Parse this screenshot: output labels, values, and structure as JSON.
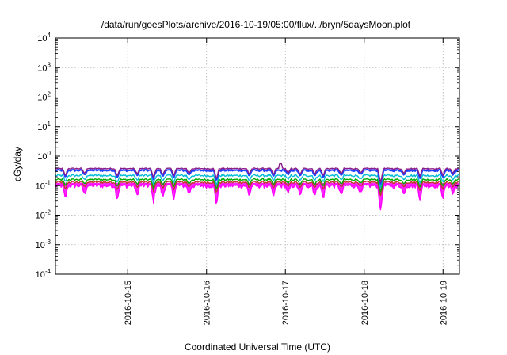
{
  "chart_data": {
    "type": "line",
    "title": "/data/run/goesPlots/archive/2016-10-19/05:00/flux/../bryn/5daysMoon.plot",
    "xlabel": "Coordinated Universal Time (UTC)",
    "ylabel": "cGy/day",
    "yscale": "log",
    "ylim": [
      0.0001,
      10000
    ],
    "xlim": [
      "2016-10-14 02:00",
      "2016-10-19 05:00"
    ],
    "grid": true,
    "legend": "none",
    "yticks": [
      {
        "value": 0.0001,
        "base": "10",
        "exp": "-4"
      },
      {
        "value": 0.001,
        "base": "10",
        "exp": "-3"
      },
      {
        "value": 0.01,
        "base": "10",
        "exp": "-2"
      },
      {
        "value": 0.1,
        "base": "10",
        "exp": "-1"
      },
      {
        "value": 1,
        "base": "10",
        "exp": "0"
      },
      {
        "value": 10,
        "base": "10",
        "exp": "1"
      },
      {
        "value": 100,
        "base": "10",
        "exp": "2"
      },
      {
        "value": 1000,
        "base": "10",
        "exp": "3"
      },
      {
        "value": 10000,
        "base": "10",
        "exp": "4"
      }
    ],
    "xticks": [
      {
        "value": "2016-10-15 00:00",
        "label": "2016-10-15"
      },
      {
        "value": "2016-10-16 00:00",
        "label": "2016-10-16"
      },
      {
        "value": "2016-10-17 00:00",
        "label": "2016-10-17"
      },
      {
        "value": "2016-10-18 00:00",
        "label": "2016-10-18"
      },
      {
        "value": "2016-10-19 00:00",
        "label": "2016-10-19"
      }
    ],
    "dips": [
      {
        "at": "2016-10-14 05:00",
        "depth": 0.9
      },
      {
        "at": "2016-10-14 10:50",
        "depth": 0.6
      },
      {
        "at": "2016-10-14 20:50",
        "depth": 0.9
      },
      {
        "at": "2016-10-15 02:50",
        "depth": 0.7
      },
      {
        "at": "2016-10-15 07:50",
        "depth": 1.1
      },
      {
        "at": "2016-10-15 10:40",
        "depth": 0.8
      },
      {
        "at": "2016-10-15 14:00",
        "depth": 0.8
      },
      {
        "at": "2016-10-15 18:40",
        "depth": 0.6
      },
      {
        "at": "2016-10-16 03:00",
        "depth": 1.3
      },
      {
        "at": "2016-10-16 13:00",
        "depth": 0.7
      },
      {
        "at": "2016-10-16 20:20",
        "depth": 0.8
      },
      {
        "at": "2016-10-17 00:50",
        "depth": 0.6
      },
      {
        "at": "2016-10-17 04:30",
        "depth": 0.8
      },
      {
        "at": "2016-10-17 09:00",
        "depth": 0.7
      },
      {
        "at": "2016-10-17 11:30",
        "depth": 0.9
      },
      {
        "at": "2016-10-17 17:00",
        "depth": 0.7
      },
      {
        "at": "2016-10-17 23:00",
        "depth": 0.6
      },
      {
        "at": "2016-10-18 05:00",
        "depth": 1.8
      },
      {
        "at": "2016-10-18 12:00",
        "depth": 0.6
      },
      {
        "at": "2016-10-18 17:00",
        "depth": 0.9
      },
      {
        "at": "2016-10-19 00:00",
        "depth": 0.8
      },
      {
        "at": "2016-10-19 03:00",
        "depth": 0.6
      }
    ],
    "series": [
      {
        "color": "#ff00ff",
        "base": 0.1,
        "noise": 0.03,
        "dip_scale": 1.0,
        "fill": true
      },
      {
        "color": "#c0392b",
        "base": 0.13,
        "noise": 0.02,
        "dip_scale": 0.55
      },
      {
        "color": "#00aa00",
        "base": 0.16,
        "noise": 0.02,
        "dip_scale": 0.5
      },
      {
        "color": "#00bcd4",
        "base": 0.22,
        "noise": 0.03,
        "dip_scale": 0.5
      },
      {
        "color": "#1e40ff",
        "base": 0.33,
        "noise": 0.04,
        "dip_scale": 0.55
      },
      {
        "color": "#8b1a8b",
        "base": 0.38,
        "noise": 0.03,
        "dip_scale": 0.55
      }
    ],
    "spikes": [
      {
        "at": "2016-10-16 22:30",
        "value": 0.55
      }
    ]
  }
}
